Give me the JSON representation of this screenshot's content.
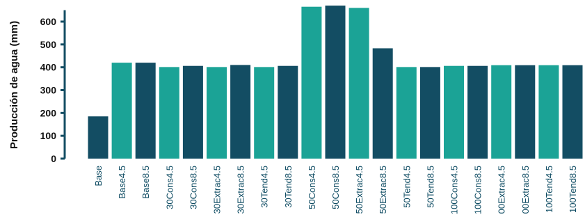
{
  "chart_data": {
    "type": "bar",
    "title": "",
    "xlabel": "",
    "ylabel": "Producción de agua (mm)",
    "ylim": [
      0,
      650
    ],
    "yticks": [
      0,
      100,
      200,
      300,
      400,
      500,
      600
    ],
    "grid": false,
    "categories": [
      "Base",
      "Base4.5",
      "Base8.5",
      "30Cons4.5",
      "30Cons8.5",
      "30Extrac4.5",
      "30Extrac8.5",
      "30Tend4.5",
      "30Tend8.5",
      "50Cons4.5",
      "50Cons8.5",
      "50Extrac4.5",
      "50Extrac8.5",
      "50Tend4.5",
      "50Tend8.5",
      "100Cons4.5",
      "100Cons8.5",
      "00Extrac4.5",
      "00Extrac8.5",
      "100Tend4.5",
      "100Tend8.5"
    ],
    "values": [
      185,
      420,
      420,
      401,
      406,
      401,
      410,
      401,
      406,
      665,
      670,
      660,
      483,
      401,
      401,
      406,
      406,
      409,
      409,
      409,
      409
    ],
    "colors": {
      "dark": "#134d63",
      "teal": "#1ba396",
      "axis": "#134d63",
      "label": "#0f4c63"
    },
    "bar_colors": [
      "dark",
      "teal",
      "dark",
      "teal",
      "dark",
      "teal",
      "dark",
      "teal",
      "dark",
      "teal",
      "dark",
      "teal",
      "dark",
      "teal",
      "dark",
      "teal",
      "dark",
      "teal",
      "dark",
      "teal",
      "dark"
    ]
  }
}
